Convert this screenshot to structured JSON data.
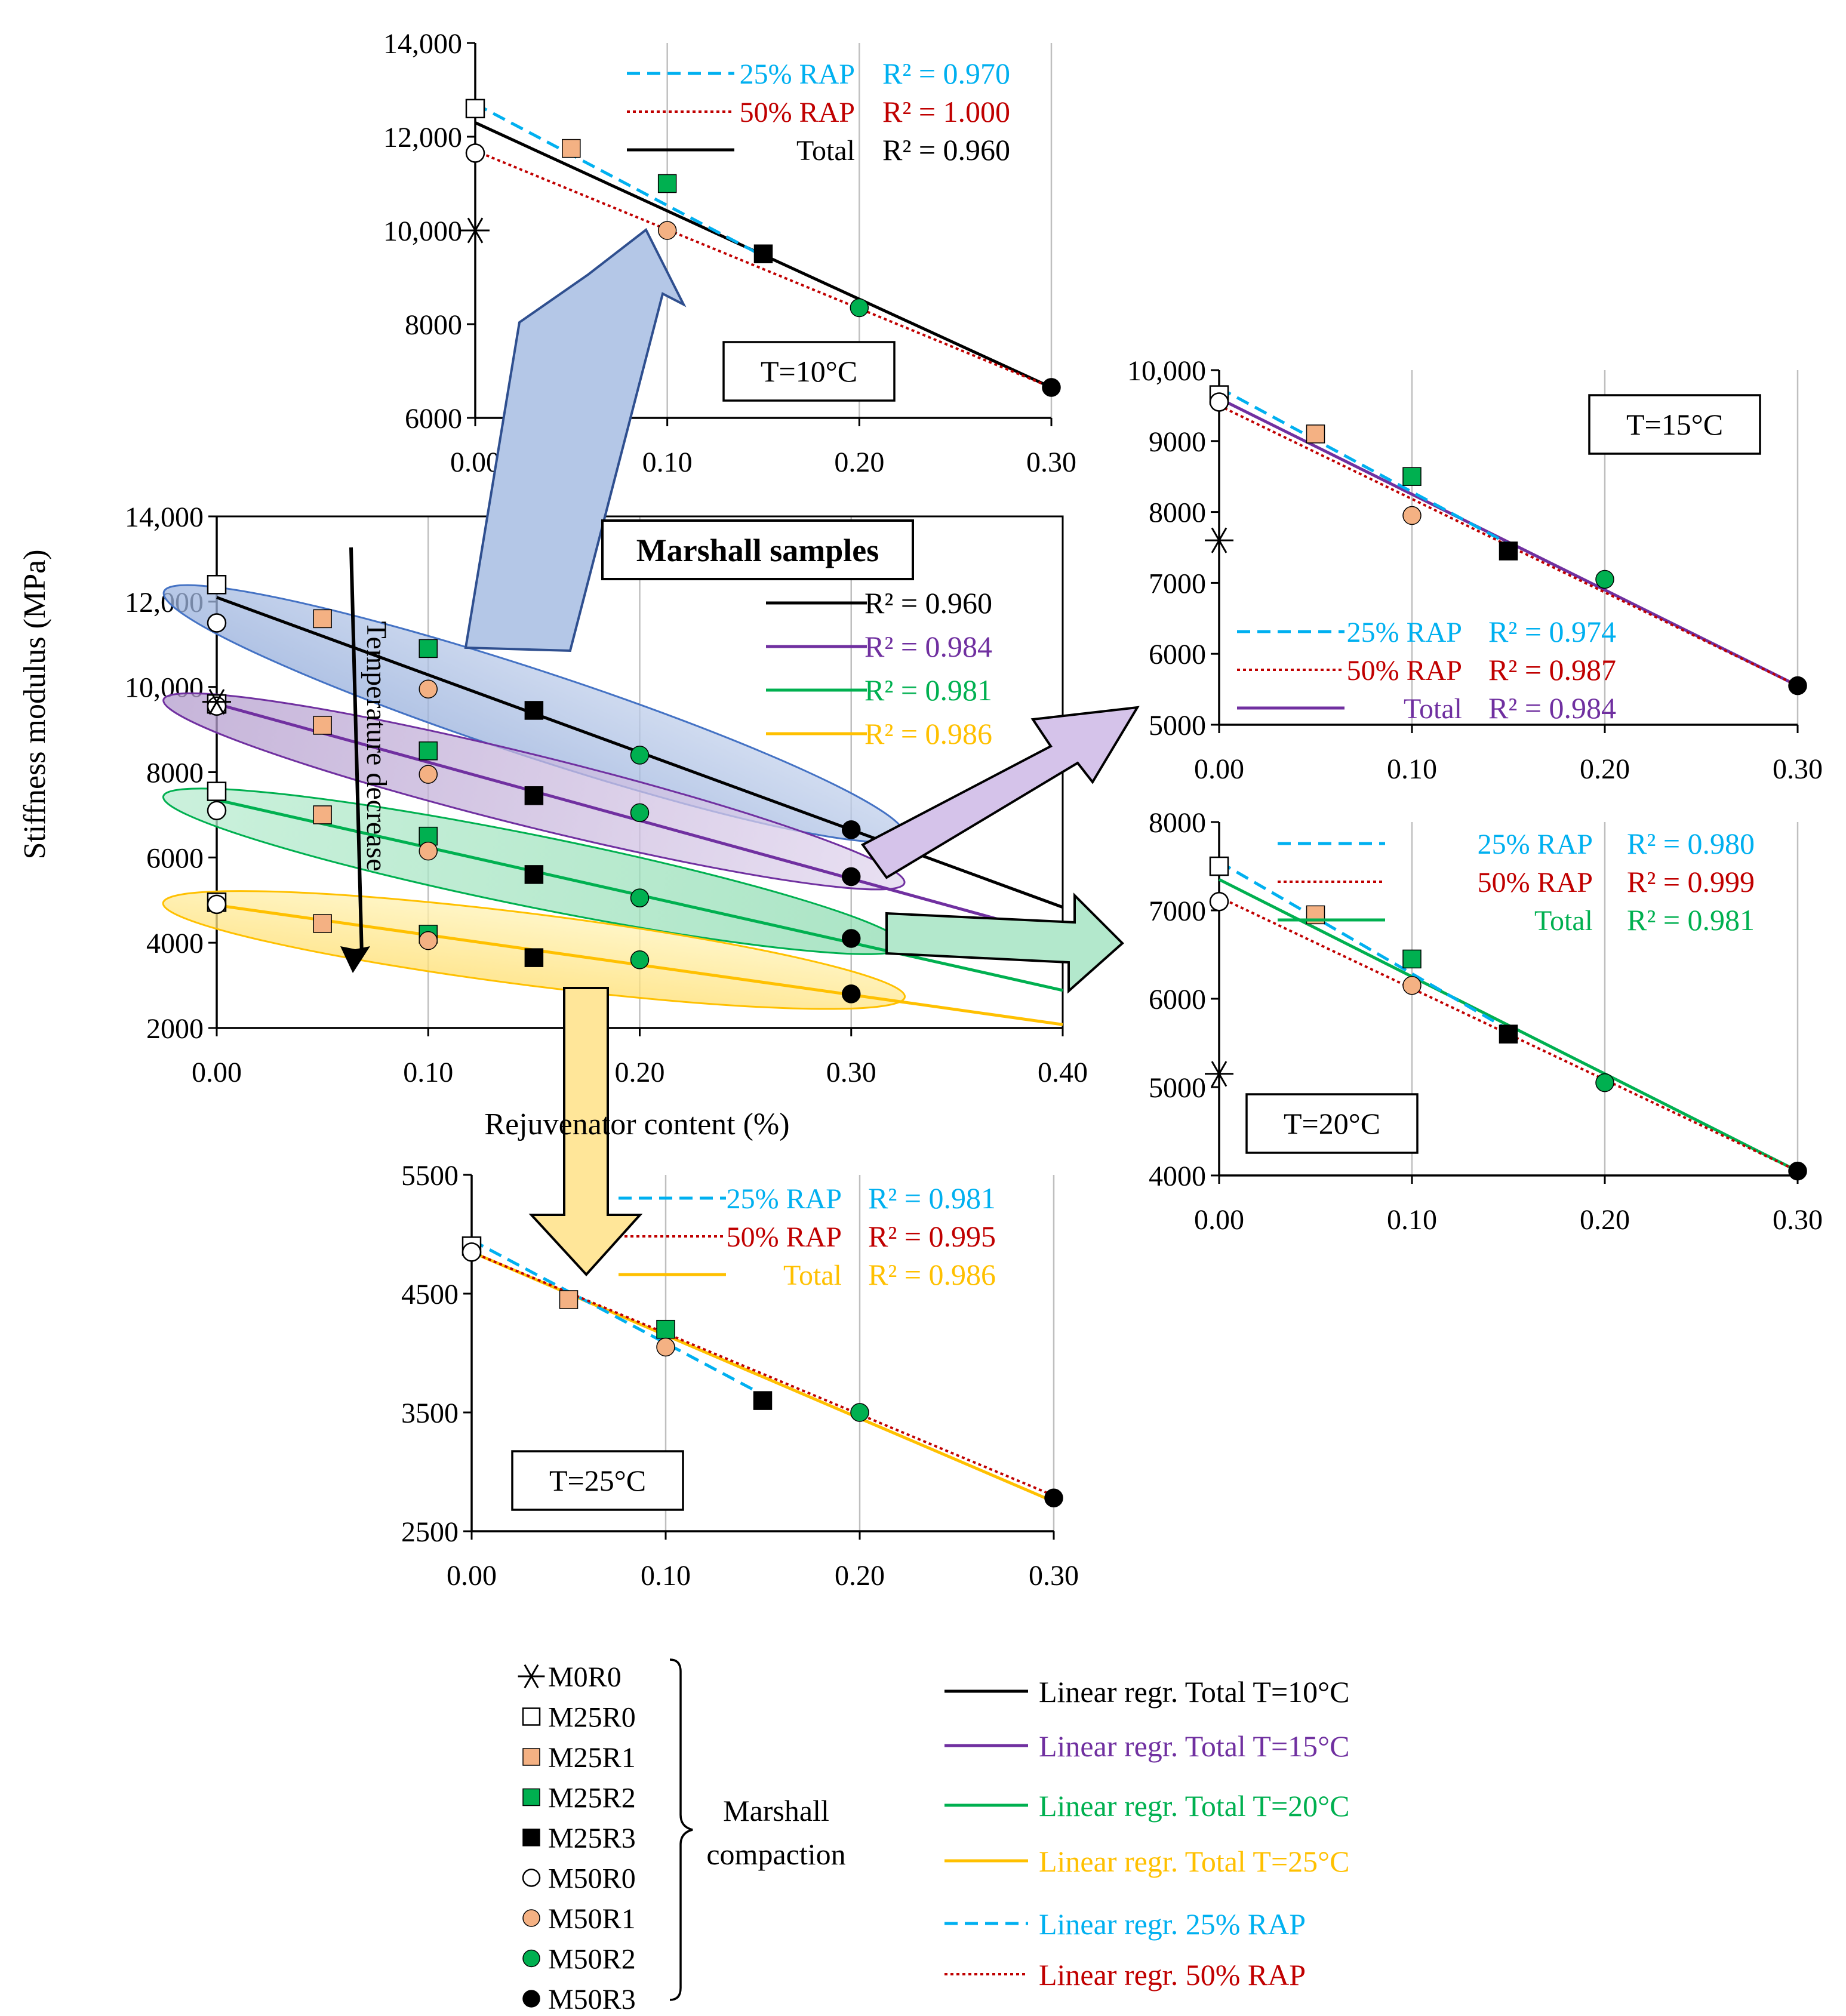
{
  "colors": {
    "black": "#000000",
    "blue": "#00b0f0",
    "red": "#c00000",
    "purple": "#7030a0",
    "green": "#00b050",
    "yellow": "#ffc000",
    "orange": "#f4b183",
    "sq_green": "#00b050",
    "grid": "#bfbfbf"
  },
  "sample_names": [
    "M0R0",
    "M25R0",
    "M25R1",
    "M25R2",
    "M25R3",
    "M50R0",
    "M50R1",
    "M50R2",
    "M50R3"
  ],
  "chart_data": [
    {
      "id": "main",
      "type": "scatter",
      "title": "Marshall samples",
      "xlabel": "Rejuvenator content (%)",
      "ylabel": "Stiffness modulus (MPa)",
      "xlim": [
        0,
        0.4
      ],
      "ylim": [
        2000,
        14000
      ],
      "xticks": [
        0,
        0.1,
        0.2,
        0.3,
        0.4
      ],
      "xticklabels": [
        "0.00",
        "0.10",
        "0.20",
        "0.30",
        "0.40"
      ],
      "yticks": [
        2000,
        4000,
        6000,
        8000,
        10000,
        12000,
        14000
      ],
      "yticklabels": [
        "2000",
        "4000",
        "6000",
        "8000",
        "10,000",
        "12,000",
        "14,000"
      ],
      "annotation": "Temperature decrease",
      "legend": [
        {
          "label": "R² = 0.960",
          "color": "black"
        },
        {
          "label": "R² = 0.984",
          "color": "purple"
        },
        {
          "label": "R² = 0.981",
          "color": "green"
        },
        {
          "label": "R² = 0.986",
          "color": "yellow"
        }
      ],
      "groups": [
        {
          "temp": "T=10°C",
          "color": "black",
          "fill": "#a9bde3",
          "edge": "#4472c4",
          "line": [
            12100,
            6650
          ],
          "points": [
            [
              "M25R0",
              0,
              12400
            ],
            [
              "M50R0",
              0,
              11500
            ],
            [
              "M25R1",
              0.05,
              11600
            ],
            [
              "M25R2",
              0.1,
              10900
            ],
            [
              "M50R1",
              0.1,
              9950
            ],
            [
              "M25R3",
              0.15,
              9450
            ],
            [
              "M50R2",
              0.2,
              8400
            ],
            [
              "M50R3",
              0.3,
              6650
            ]
          ]
        },
        {
          "temp": "T=15°C",
          "color": "purple",
          "fill": "#c7b3dc",
          "edge": "#7030a0",
          "line": [
            9600,
            5500
          ],
          "points": [
            [
              "M25R0",
              0,
              9600
            ],
            [
              "M50R0",
              0,
              9550
            ],
            [
              "M0R0",
              0,
              9650
            ],
            [
              "M25R1",
              0.05,
              9100
            ],
            [
              "M25R2",
              0.1,
              8500
            ],
            [
              "M50R1",
              0.1,
              7950
            ],
            [
              "M25R3",
              0.15,
              7450
            ],
            [
              "M50R2",
              0.2,
              7050
            ],
            [
              "M50R3",
              0.3,
              5550
            ]
          ]
        },
        {
          "temp": "T=20°C",
          "color": "green",
          "fill": "#b0e3c4",
          "edge": "#00b050",
          "line": [
            7350,
            4000
          ],
          "points": [
            [
              "M25R0",
              0,
              7550
            ],
            [
              "M50R0",
              0,
              7100
            ],
            [
              "M25R1",
              0.05,
              7000
            ],
            [
              "M25R2",
              0.1,
              6500
            ],
            [
              "M50R1",
              0.1,
              6150
            ],
            [
              "M25R3",
              0.15,
              5600
            ],
            [
              "M50R2",
              0.2,
              5050
            ],
            [
              "M50R3",
              0.3,
              4100
            ]
          ]
        },
        {
          "temp": "T=25°C",
          "color": "yellow",
          "fill": "#ffe699",
          "edge": "#ffc000",
          "line": [
            4880,
            2780
          ],
          "points": [
            [
              "M25R0",
              0,
              4950
            ],
            [
              "M50R0",
              0,
              4900
            ],
            [
              "M25R1",
              0.05,
              4450
            ],
            [
              "M25R2",
              0.1,
              4200
            ],
            [
              "M50R1",
              0.1,
              4050
            ],
            [
              "M25R3",
              0.15,
              3650
            ],
            [
              "M50R2",
              0.2,
              3600
            ],
            [
              "M50R3",
              0.3,
              2800
            ]
          ]
        }
      ]
    },
    {
      "id": "t10",
      "type": "scatter",
      "label": "T=10°C",
      "xlim": [
        0,
        0.3
      ],
      "ylim": [
        6000,
        14000
      ],
      "xticks": [
        0,
        0.1,
        0.2,
        0.3
      ],
      "xticklabels": [
        "0.00",
        "0.10",
        "0.20",
        "0.30"
      ],
      "yticks": [
        6000,
        8000,
        10000,
        12000,
        14000
      ],
      "yticklabels": [
        "6000",
        "8000",
        "10,000",
        "12,000",
        "14,000"
      ],
      "legend": [
        {
          "name": "25% RAP",
          "r2": "R² = 0.970",
          "style": "dash",
          "color": "blue"
        },
        {
          "name": "50% RAP",
          "r2": "R² = 1.000",
          "style": "dot",
          "color": "red"
        },
        {
          "name": "Total",
          "r2": "R² = 0.960",
          "style": "solid",
          "color": "black"
        }
      ],
      "lines": [
        {
          "style": "solid",
          "color": "black",
          "x": [
            0,
            0.3
          ],
          "y": [
            12300,
            6650
          ]
        },
        {
          "style": "dash",
          "color": "blue",
          "x": [
            0,
            0.15
          ],
          "y": [
            12700,
            9450
          ]
        },
        {
          "style": "dot",
          "color": "red",
          "x": [
            0,
            0.3
          ],
          "y": [
            11700,
            6650
          ]
        }
      ],
      "points": [
        [
          "M0R0",
          0,
          10000
        ],
        [
          "M25R0",
          0,
          12600
        ],
        [
          "M50R0",
          0,
          11650
        ],
        [
          "M25R1",
          0.05,
          11750
        ],
        [
          "M25R2",
          0.1,
          11000
        ],
        [
          "M50R1",
          0.1,
          10000
        ],
        [
          "M25R3",
          0.15,
          9500
        ],
        [
          "M50R2",
          0.2,
          8350
        ],
        [
          "M50R3",
          0.3,
          6650
        ]
      ]
    },
    {
      "id": "t15",
      "type": "scatter",
      "label": "T=15°C",
      "xlim": [
        0,
        0.3
      ],
      "ylim": [
        5000,
        10000
      ],
      "xticks": [
        0,
        0.1,
        0.2,
        0.3
      ],
      "xticklabels": [
        "0.00",
        "0.10",
        "0.20",
        "0.30"
      ],
      "yticks": [
        5000,
        6000,
        7000,
        8000,
        9000,
        10000
      ],
      "yticklabels": [
        "5000",
        "6000",
        "7000",
        "8000",
        "9000",
        "10,000"
      ],
      "legend": [
        {
          "name": "25% RAP",
          "r2": "R² = 0.974",
          "style": "dash",
          "color": "blue"
        },
        {
          "name": "50% RAP",
          "r2": "R² = 0.987",
          "style": "dot",
          "color": "red"
        },
        {
          "name": "Total",
          "r2": "R² = 0.984",
          "style": "solid",
          "color": "purple"
        }
      ],
      "lines": [
        {
          "style": "solid",
          "color": "purple",
          "x": [
            0,
            0.3
          ],
          "y": [
            9600,
            5550
          ]
        },
        {
          "style": "dash",
          "color": "blue",
          "x": [
            0,
            0.15
          ],
          "y": [
            9750,
            7550
          ]
        },
        {
          "style": "dot",
          "color": "red",
          "x": [
            0,
            0.3
          ],
          "y": [
            9500,
            5550
          ]
        }
      ],
      "points": [
        [
          "M0R0",
          0,
          7600
        ],
        [
          "M25R0",
          0,
          9650
        ],
        [
          "M50R0",
          0,
          9550
        ],
        [
          "M25R1",
          0.05,
          9100
        ],
        [
          "M25R2",
          0.1,
          8500
        ],
        [
          "M50R1",
          0.1,
          7950
        ],
        [
          "M25R3",
          0.15,
          7450
        ],
        [
          "M50R2",
          0.2,
          7050
        ],
        [
          "M50R3",
          0.3,
          5550
        ]
      ]
    },
    {
      "id": "t20",
      "type": "scatter",
      "label": "T=20°C",
      "xlim": [
        0,
        0.3
      ],
      "ylim": [
        4000,
        8000
      ],
      "xticks": [
        0,
        0.1,
        0.2,
        0.3
      ],
      "xticklabels": [
        "0.00",
        "0.10",
        "0.20",
        "0.30"
      ],
      "yticks": [
        4000,
        5000,
        6000,
        7000,
        8000
      ],
      "yticklabels": [
        "4000",
        "5000",
        "6000",
        "7000",
        "8000"
      ],
      "legend": [
        {
          "name": "25% RAP",
          "r2": "R² = 0.980",
          "style": "dash",
          "color": "blue"
        },
        {
          "name": "50% RAP",
          "r2": "R² = 0.999",
          "style": "dot",
          "color": "red"
        },
        {
          "name": "Total",
          "r2": "R² = 0.981",
          "style": "solid",
          "color": "green"
        }
      ],
      "lines": [
        {
          "style": "solid",
          "color": "green",
          "x": [
            0,
            0.3
          ],
          "y": [
            7350,
            4050
          ]
        },
        {
          "style": "dash",
          "color": "blue",
          "x": [
            0,
            0.15
          ],
          "y": [
            7550,
            5650
          ]
        },
        {
          "style": "dot",
          "color": "red",
          "x": [
            0,
            0.3
          ],
          "y": [
            7150,
            4050
          ]
        }
      ],
      "points": [
        [
          "M0R0",
          0,
          5150
        ],
        [
          "M25R0",
          0,
          7500
        ],
        [
          "M50R0",
          0,
          7100
        ],
        [
          "M25R1",
          0.05,
          6950
        ],
        [
          "M25R2",
          0.1,
          6450
        ],
        [
          "M50R1",
          0.1,
          6150
        ],
        [
          "M25R3",
          0.15,
          5600
        ],
        [
          "M50R2",
          0.2,
          5050
        ],
        [
          "M50R3",
          0.3,
          4050
        ]
      ]
    },
    {
      "id": "t25",
      "type": "scatter",
      "label": "T=25°C",
      "xlim": [
        0,
        0.3
      ],
      "ylim": [
        2500,
        5500
      ],
      "xticks": [
        0,
        0.1,
        0.2,
        0.3
      ],
      "xticklabels": [
        "0.00",
        "0.10",
        "0.20",
        "0.30"
      ],
      "yticks": [
        2500,
        3500,
        4500,
        5500
      ],
      "yticklabels": [
        "2500",
        "3500",
        "4500",
        "5500"
      ],
      "legend": [
        {
          "name": "25% RAP",
          "r2": "R² = 0.981",
          "style": "dash",
          "color": "blue"
        },
        {
          "name": "50% RAP",
          "r2": "R² = 0.995",
          "style": "dot",
          "color": "red"
        },
        {
          "name": "Total",
          "r2": "R² = 0.986",
          "style": "solid",
          "color": "yellow"
        }
      ],
      "lines": [
        {
          "style": "solid",
          "color": "yellow",
          "x": [
            0,
            0.3
          ],
          "y": [
            4850,
            2750
          ]
        },
        {
          "style": "dash",
          "color": "blue",
          "x": [
            0,
            0.15
          ],
          "y": [
            4950,
            3650
          ]
        },
        {
          "style": "dot",
          "color": "red",
          "x": [
            0,
            0.3
          ],
          "y": [
            4850,
            2800
          ]
        }
      ],
      "points": [
        [
          "M25R0",
          0,
          4900
        ],
        [
          "M50R0",
          0,
          4850
        ],
        [
          "M25R1",
          0.05,
          4450
        ],
        [
          "M25R2",
          0.1,
          4200
        ],
        [
          "M50R1",
          0.1,
          4050
        ],
        [
          "M25R3",
          0.15,
          3600
        ],
        [
          "M50R2",
          0.2,
          3500
        ],
        [
          "M50R3",
          0.3,
          2780
        ]
      ]
    }
  ],
  "legend_markers": {
    "items": [
      "M0R0",
      "M25R0",
      "M25R1",
      "M25R2",
      "M25R3",
      "M50R0",
      "M50R1",
      "M50R2",
      "M50R3"
    ],
    "group_label": [
      "Marshall",
      "compaction"
    ]
  },
  "legend_lines": [
    {
      "label": "Linear regr. Total T=10°C",
      "color": "black",
      "style": "solid"
    },
    {
      "label": "Linear regr. Total T=15°C",
      "color": "purple",
      "style": "solid"
    },
    {
      "label": "Linear regr. Total T=20°C",
      "color": "green",
      "style": "solid"
    },
    {
      "label": "Linear regr. Total T=25°C",
      "color": "yellow",
      "style": "solid"
    },
    {
      "label": "Linear regr. 25% RAP",
      "color": "blue",
      "style": "dash"
    },
    {
      "label": "Linear regr. 50% RAP",
      "color": "red",
      "style": "dot"
    }
  ]
}
